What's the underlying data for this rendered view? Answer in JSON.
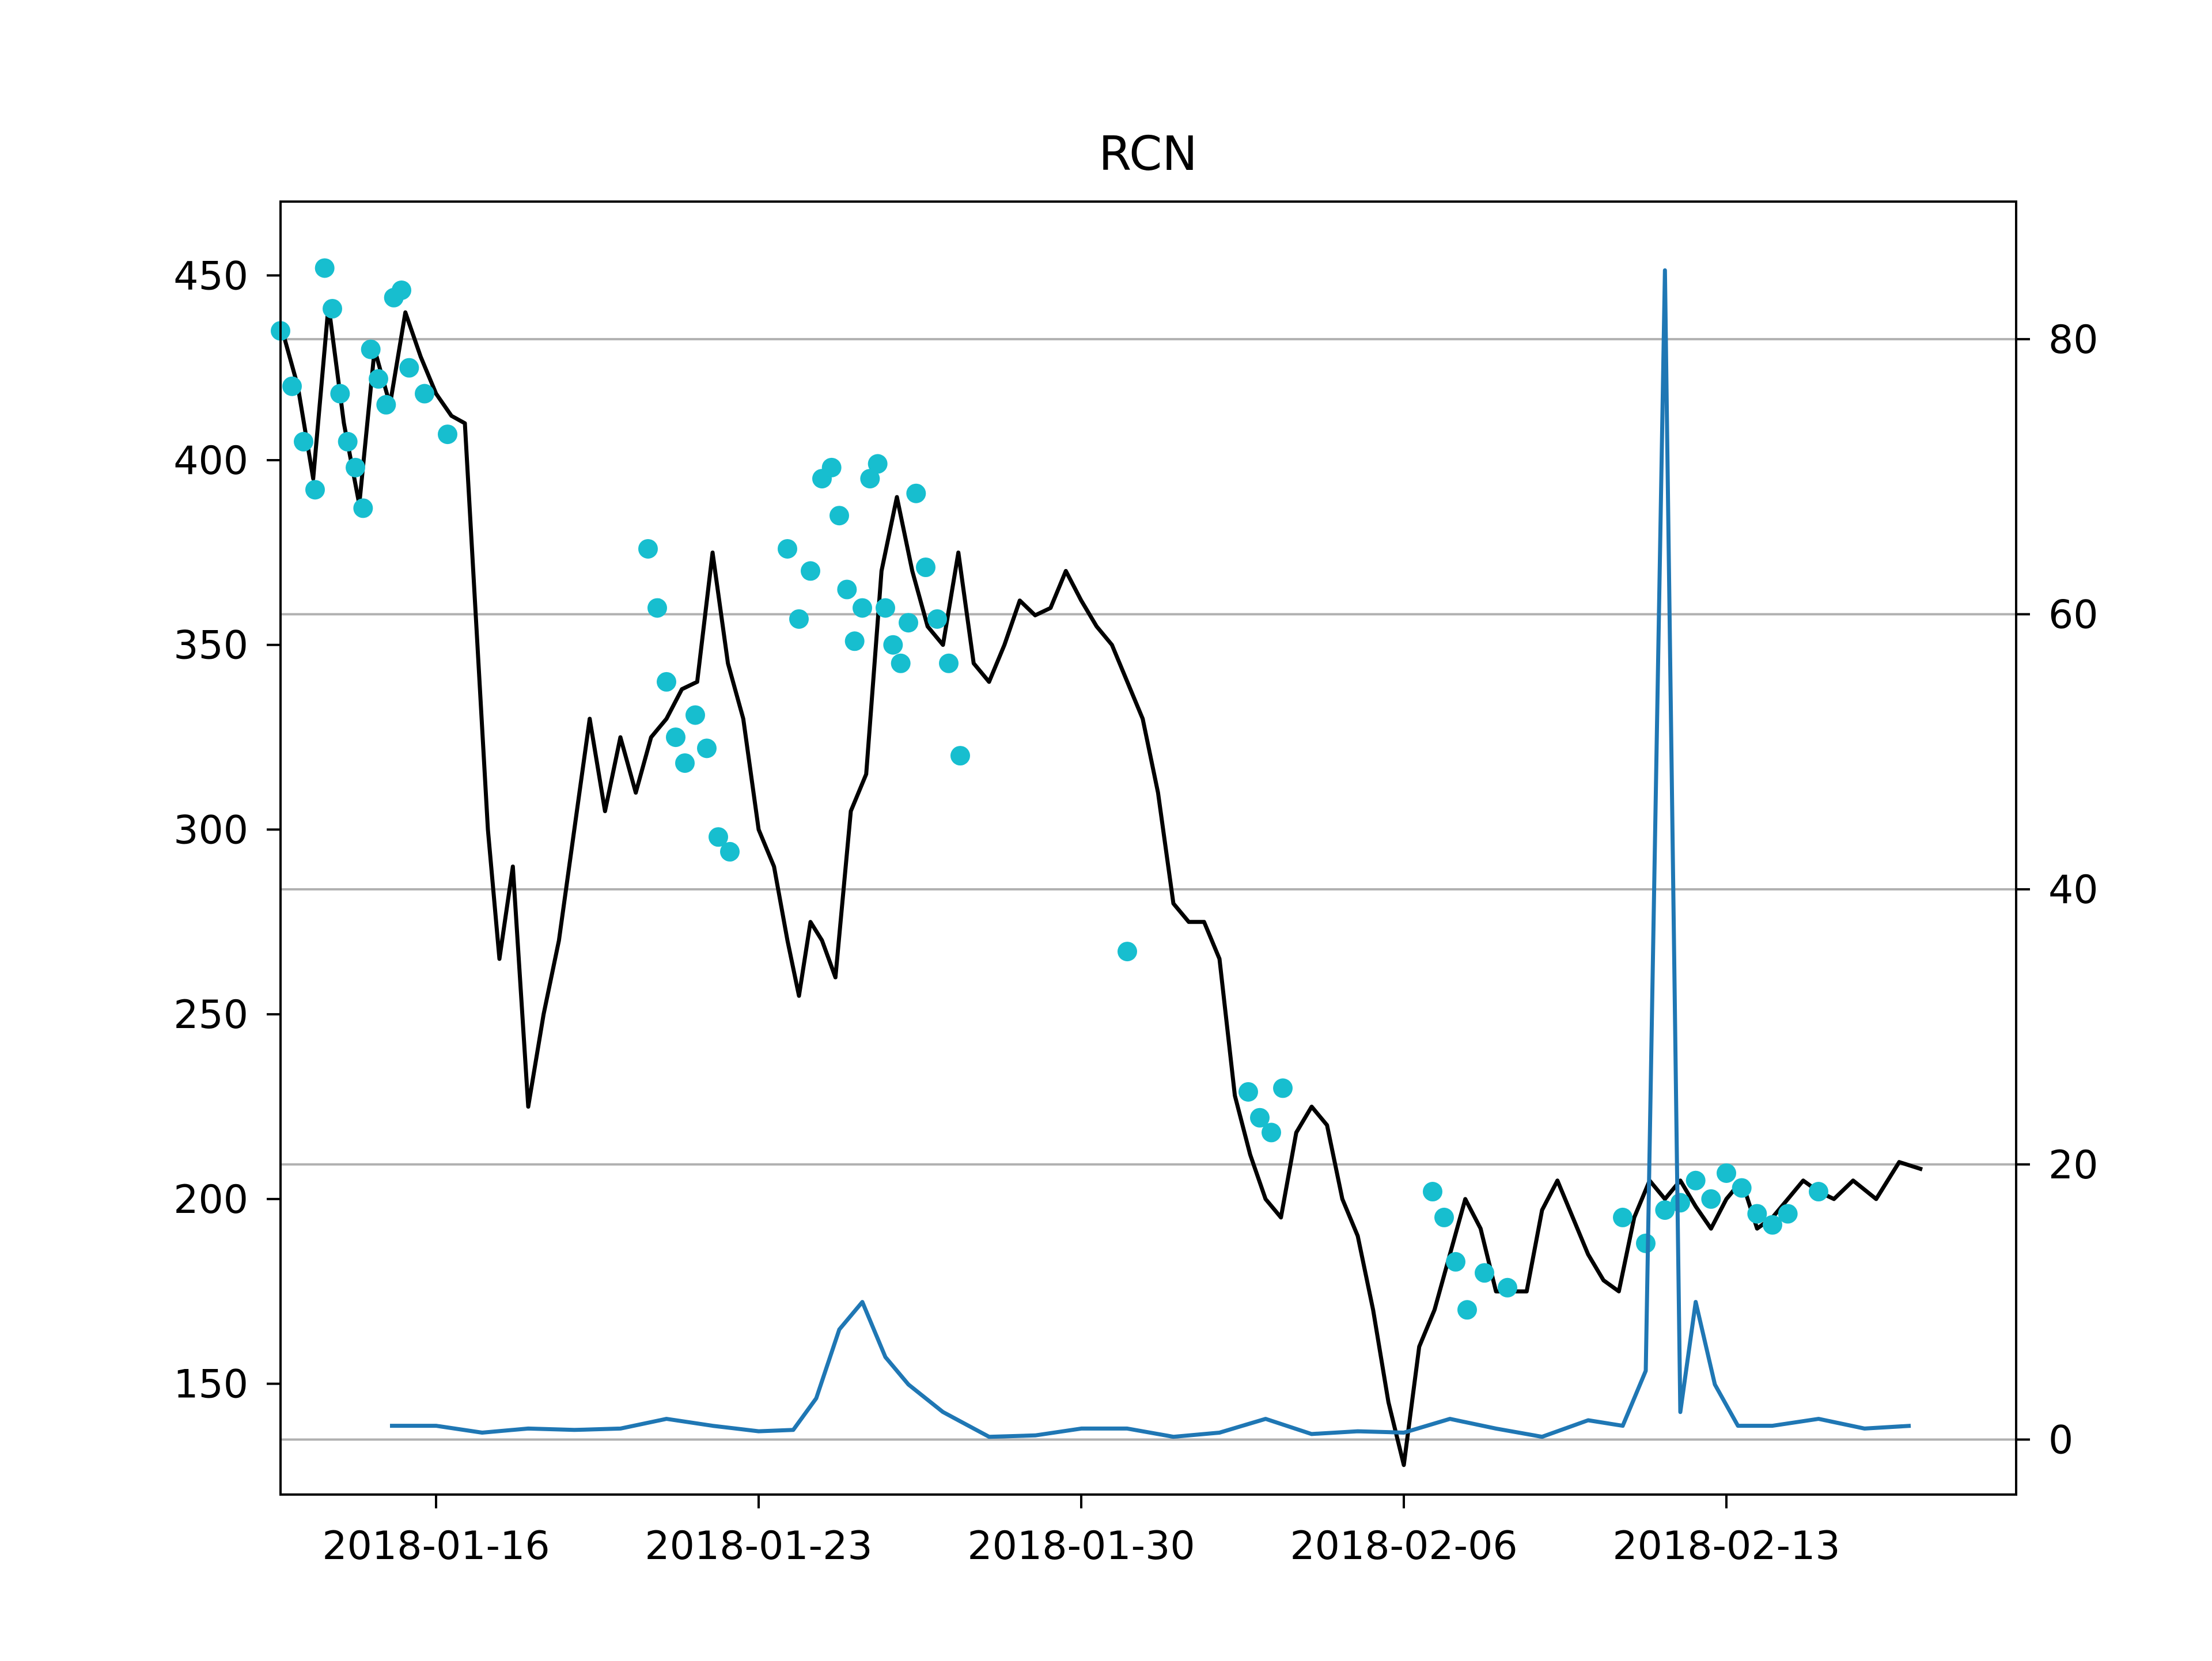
{
  "chart_data": {
    "type": "line",
    "title": "RCN",
    "xlabel": "",
    "ylabel": "",
    "x_ticks": [
      "2018-01-16",
      "2018-01-23",
      "2018-01-30",
      "2018-02-06",
      "2018-02-13"
    ],
    "y_left_ticks": [
      "150",
      "200",
      "250",
      "300",
      "350",
      "400",
      "450"
    ],
    "y_right_ticks": [
      "0",
      "20",
      "40",
      "60",
      "80"
    ],
    "ylim_left": [
      120,
      470
    ],
    "ylim_right": [
      -4,
      90
    ],
    "grid": "horizontal lines at right-axis ticks",
    "colors": {
      "price": "#000000",
      "markers": "#17becf",
      "volume": "#1f77b4",
      "grid": "#b0b0b0"
    },
    "series": [
      {
        "axis": "left",
        "color": "#000000",
        "x_dates": [
          "2018-01-13",
          "2018-01-13",
          "2018-01-13",
          "2018-01-14",
          "2018-01-14",
          "2018-01-14",
          "2018-01-15",
          "2018-01-15",
          "2018-01-15",
          "2018-01-16",
          "2018-01-16",
          "2018-01-16",
          "2018-01-17",
          "2018-01-17",
          "2018-01-17",
          "2018-01-17",
          "2018-01-18",
          "2018-01-18",
          "2018-01-18",
          "2018-01-19",
          "2018-01-19",
          "2018-01-19",
          "2018-01-20",
          "2018-01-20",
          "2018-01-20",
          "2018-01-21",
          "2018-01-21",
          "2018-01-21",
          "2018-01-22",
          "2018-01-22",
          "2018-01-22",
          "2018-01-23",
          "2018-01-23",
          "2018-01-23",
          "2018-01-24",
          "2018-01-24",
          "2018-01-24",
          "2018-01-24",
          "2018-01-25",
          "2018-01-25",
          "2018-01-25",
          "2018-01-26",
          "2018-01-26",
          "2018-01-26",
          "2018-01-27",
          "2018-01-27",
          "2018-01-27",
          "2018-01-28",
          "2018-01-28",
          "2018-01-28",
          "2018-01-29",
          "2018-01-29",
          "2018-01-29",
          "2018-01-30",
          "2018-01-30",
          "2018-01-30",
          "2018-01-31",
          "2018-01-31",
          "2018-01-31",
          "2018-02-01",
          "2018-02-01",
          "2018-02-01",
          "2018-02-02",
          "2018-02-02",
          "2018-02-02",
          "2018-02-03",
          "2018-02-03",
          "2018-02-03",
          "2018-02-04",
          "2018-02-04",
          "2018-02-04",
          "2018-02-05",
          "2018-02-05",
          "2018-02-05",
          "2018-02-06",
          "2018-02-06",
          "2018-02-06",
          "2018-02-07",
          "2018-02-07",
          "2018-02-07",
          "2018-02-08",
          "2018-02-08",
          "2018-02-08",
          "2018-02-09",
          "2018-02-09",
          "2018-02-09",
          "2018-02-10",
          "2018-02-10",
          "2018-02-10",
          "2018-02-11",
          "2018-02-11",
          "2018-02-11",
          "2018-02-12",
          "2018-02-12",
          "2018-02-12",
          "2018-02-13",
          "2018-02-13",
          "2018-02-13",
          "2018-02-14",
          "2018-02-14",
          "2018-02-14",
          "2018-02-15",
          "2018-02-15",
          "2018-02-15",
          "2018-02-16",
          "2018-02-16",
          "2018-02-17",
          "2018-02-17"
        ],
        "values": [
          435,
          420,
          395,
          442,
          410,
          388,
          430,
          415,
          440,
          428,
          418,
          412,
          410,
          355,
          300,
          265,
          290,
          225,
          250,
          270,
          300,
          330,
          305,
          325,
          310,
          325,
          330,
          338,
          340,
          375,
          345,
          330,
          300,
          290,
          270,
          255,
          275,
          270,
          260,
          305,
          315,
          370,
          390,
          370,
          355,
          350,
          375,
          345,
          340,
          350,
          362,
          358,
          360,
          370,
          362,
          355,
          350,
          340,
          330,
          310,
          280,
          275,
          275,
          265,
          228,
          212,
          200,
          195,
          218,
          225,
          220,
          200,
          190,
          170,
          145,
          128,
          160,
          170,
          185,
          200,
          192,
          175,
          175,
          175,
          197,
          205,
          195,
          185,
          178,
          175,
          195,
          205,
          200,
          205,
          198,
          192,
          200,
          205,
          192,
          195,
          200,
          205,
          202,
          200,
          205,
          200,
          210,
          208
        ]
      },
      {
        "axis": "left",
        "color": "#17becf",
        "marker": "circle",
        "x_dates": [
          "2018-01-13",
          "2018-01-13",
          "2018-01-13",
          "2018-01-13",
          "2018-01-14",
          "2018-01-14",
          "2018-01-14",
          "2018-01-14",
          "2018-01-14",
          "2018-01-14",
          "2018-01-15",
          "2018-01-15",
          "2018-01-15",
          "2018-01-15",
          "2018-01-15",
          "2018-01-15",
          "2018-01-16",
          "2018-01-16",
          "2018-01-21",
          "2018-01-21",
          "2018-01-21",
          "2018-01-21",
          "2018-01-21",
          "2018-01-22",
          "2018-01-22",
          "2018-01-22",
          "2018-01-22",
          "2018-01-24",
          "2018-01-24",
          "2018-01-24",
          "2018-01-24",
          "2018-01-25",
          "2018-01-25",
          "2018-01-25",
          "2018-01-25",
          "2018-01-25",
          "2018-01-25",
          "2018-01-26",
          "2018-01-26",
          "2018-01-26",
          "2018-01-26",
          "2018-01-26",
          "2018-01-26",
          "2018-01-27",
          "2018-01-27",
          "2018-01-27",
          "2018-01-27",
          "2018-01-31",
          "2018-02-03",
          "2018-02-03",
          "2018-02-03",
          "2018-02-03",
          "2018-02-07",
          "2018-02-07",
          "2018-02-07",
          "2018-02-07",
          "2018-02-08",
          "2018-02-08",
          "2018-02-11",
          "2018-02-11",
          "2018-02-12",
          "2018-02-12",
          "2018-02-12",
          "2018-02-13",
          "2018-02-13",
          "2018-02-13",
          "2018-02-14",
          "2018-02-14",
          "2018-02-14",
          "2018-02-15"
        ],
        "values": [
          435,
          420,
          405,
          392,
          452,
          441,
          418,
          405,
          398,
          387,
          430,
          422,
          415,
          444,
          446,
          425,
          418,
          407,
          376,
          360,
          340,
          325,
          318,
          331,
          322,
          298,
          294,
          376,
          357,
          370,
          395,
          398,
          385,
          365,
          351,
          360,
          395,
          399,
          360,
          350,
          345,
          356,
          391,
          371,
          357,
          345,
          320,
          267,
          229,
          222,
          218,
          230,
          202,
          195,
          183,
          170,
          180,
          176,
          195,
          188,
          197,
          199,
          205,
          200,
          207,
          203,
          196,
          193,
          196,
          202
        ]
      },
      {
        "axis": "right",
        "color": "#1f77b4",
        "x_dates": [
          "2018-01-15",
          "2018-01-16",
          "2018-01-17",
          "2018-01-18",
          "2018-01-19",
          "2018-01-20",
          "2018-01-21",
          "2018-01-22",
          "2018-01-23",
          "2018-01-24",
          "2018-01-24",
          "2018-01-25",
          "2018-01-25",
          "2018-01-26",
          "2018-01-26",
          "2018-01-27",
          "2018-01-28",
          "2018-01-29",
          "2018-01-30",
          "2018-01-31",
          "2018-02-01",
          "2018-02-02",
          "2018-02-03",
          "2018-02-04",
          "2018-02-05",
          "2018-02-06",
          "2018-02-07",
          "2018-02-08",
          "2018-02-09",
          "2018-02-10",
          "2018-02-11",
          "2018-02-11",
          "2018-02-12",
          "2018-02-12",
          "2018-02-12",
          "2018-02-13",
          "2018-02-13",
          "2018-02-14",
          "2018-02-15",
          "2018-02-16",
          "2018-02-17"
        ],
        "values": [
          1,
          1,
          0.5,
          0.8,
          0.7,
          0.8,
          1.5,
          1,
          0.6,
          0.7,
          3,
          8,
          10,
          6,
          4,
          2,
          0.2,
          0.3,
          0.8,
          0.8,
          0.2,
          0.5,
          1.5,
          0.4,
          0.6,
          0.5,
          1.5,
          0.8,
          0.2,
          1.4,
          1,
          5,
          85,
          2,
          10,
          4,
          1,
          1,
          1.5,
          0.8,
          1
        ]
      }
    ]
  }
}
